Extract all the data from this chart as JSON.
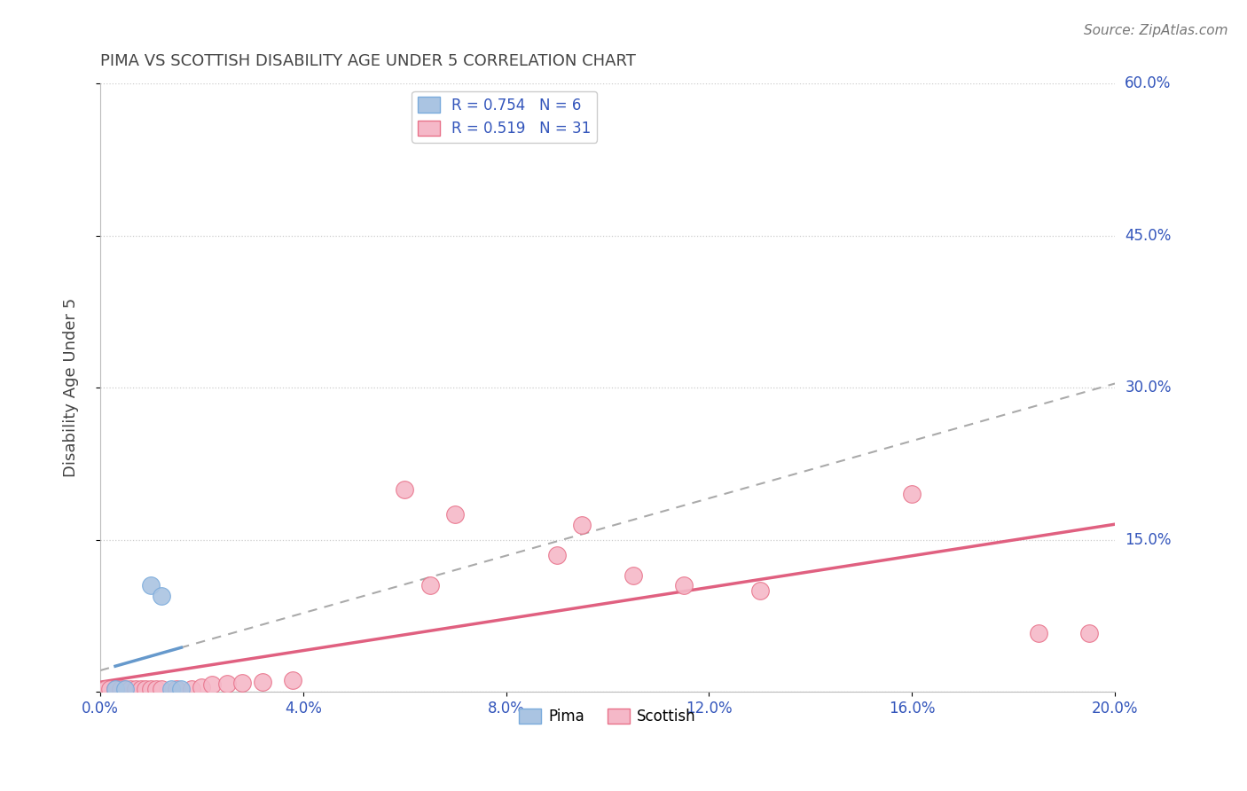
{
  "title": "PIMA VS SCOTTISH DISABILITY AGE UNDER 5 CORRELATION CHART",
  "ylabel": "Disability Age Under 5",
  "source_text": "Source: ZipAtlas.com",
  "xlim": [
    0.0,
    0.2
  ],
  "ylim": [
    0.0,
    0.6
  ],
  "xticks": [
    0.0,
    0.04,
    0.08,
    0.12,
    0.16,
    0.2
  ],
  "yticks": [
    0.0,
    0.15,
    0.3,
    0.45,
    0.6
  ],
  "pima_R": 0.754,
  "pima_N": 6,
  "scottish_R": 0.519,
  "scottish_N": 31,
  "pima_face_color": "#aac4e2",
  "pima_edge_color": "#7aabdc",
  "scottish_face_color": "#f5b8c8",
  "scottish_edge_color": "#e8728a",
  "pima_line_color": "#6699cc",
  "scottish_line_color": "#e06080",
  "grid_color": "#cccccc",
  "title_color": "#444444",
  "axis_label_color": "#3355bb",
  "pima_x": [
    0.003,
    0.006,
    0.009,
    0.011,
    0.013,
    0.016
  ],
  "pima_y": [
    0.002,
    0.002,
    0.105,
    0.09,
    0.09,
    0.002
  ],
  "scottish_x": [
    0.001,
    0.002,
    0.003,
    0.004,
    0.005,
    0.006,
    0.007,
    0.008,
    0.009,
    0.01,
    0.011,
    0.012,
    0.013,
    0.015,
    0.017,
    0.019,
    0.022,
    0.025,
    0.028,
    0.032,
    0.06,
    0.075,
    0.09,
    0.1,
    0.105,
    0.115,
    0.13,
    0.155,
    0.17,
    0.19,
    0.195
  ],
  "scottish_y": [
    0.002,
    0.002,
    0.002,
    0.002,
    0.002,
    0.002,
    0.002,
    0.002,
    0.002,
    0.002,
    0.002,
    0.002,
    0.002,
    0.004,
    0.005,
    0.006,
    0.007,
    0.008,
    0.009,
    0.012,
    0.2,
    0.19,
    0.135,
    0.135,
    0.165,
    0.115,
    0.105,
    0.095,
    0.19,
    0.055,
    0.055
  ],
  "scottish_x_full": [
    0.001,
    0.002,
    0.003,
    0.004,
    0.005,
    0.006,
    0.007,
    0.008,
    0.009,
    0.01,
    0.011,
    0.012,
    0.013,
    0.015,
    0.017,
    0.019,
    0.022,
    0.025,
    0.028,
    0.032,
    0.045,
    0.055,
    0.065,
    0.075,
    0.085,
    0.095,
    0.11,
    0.125,
    0.14,
    0.16,
    0.19
  ],
  "scottish_y_full": [
    0.002,
    0.002,
    0.002,
    0.002,
    0.002,
    0.002,
    0.002,
    0.002,
    0.002,
    0.002,
    0.002,
    0.002,
    0.002,
    0.004,
    0.005,
    0.006,
    0.007,
    0.008,
    0.01,
    0.013,
    0.185,
    0.105,
    0.107,
    0.14,
    0.165,
    0.115,
    0.105,
    0.095,
    0.185,
    0.055,
    0.055
  ]
}
